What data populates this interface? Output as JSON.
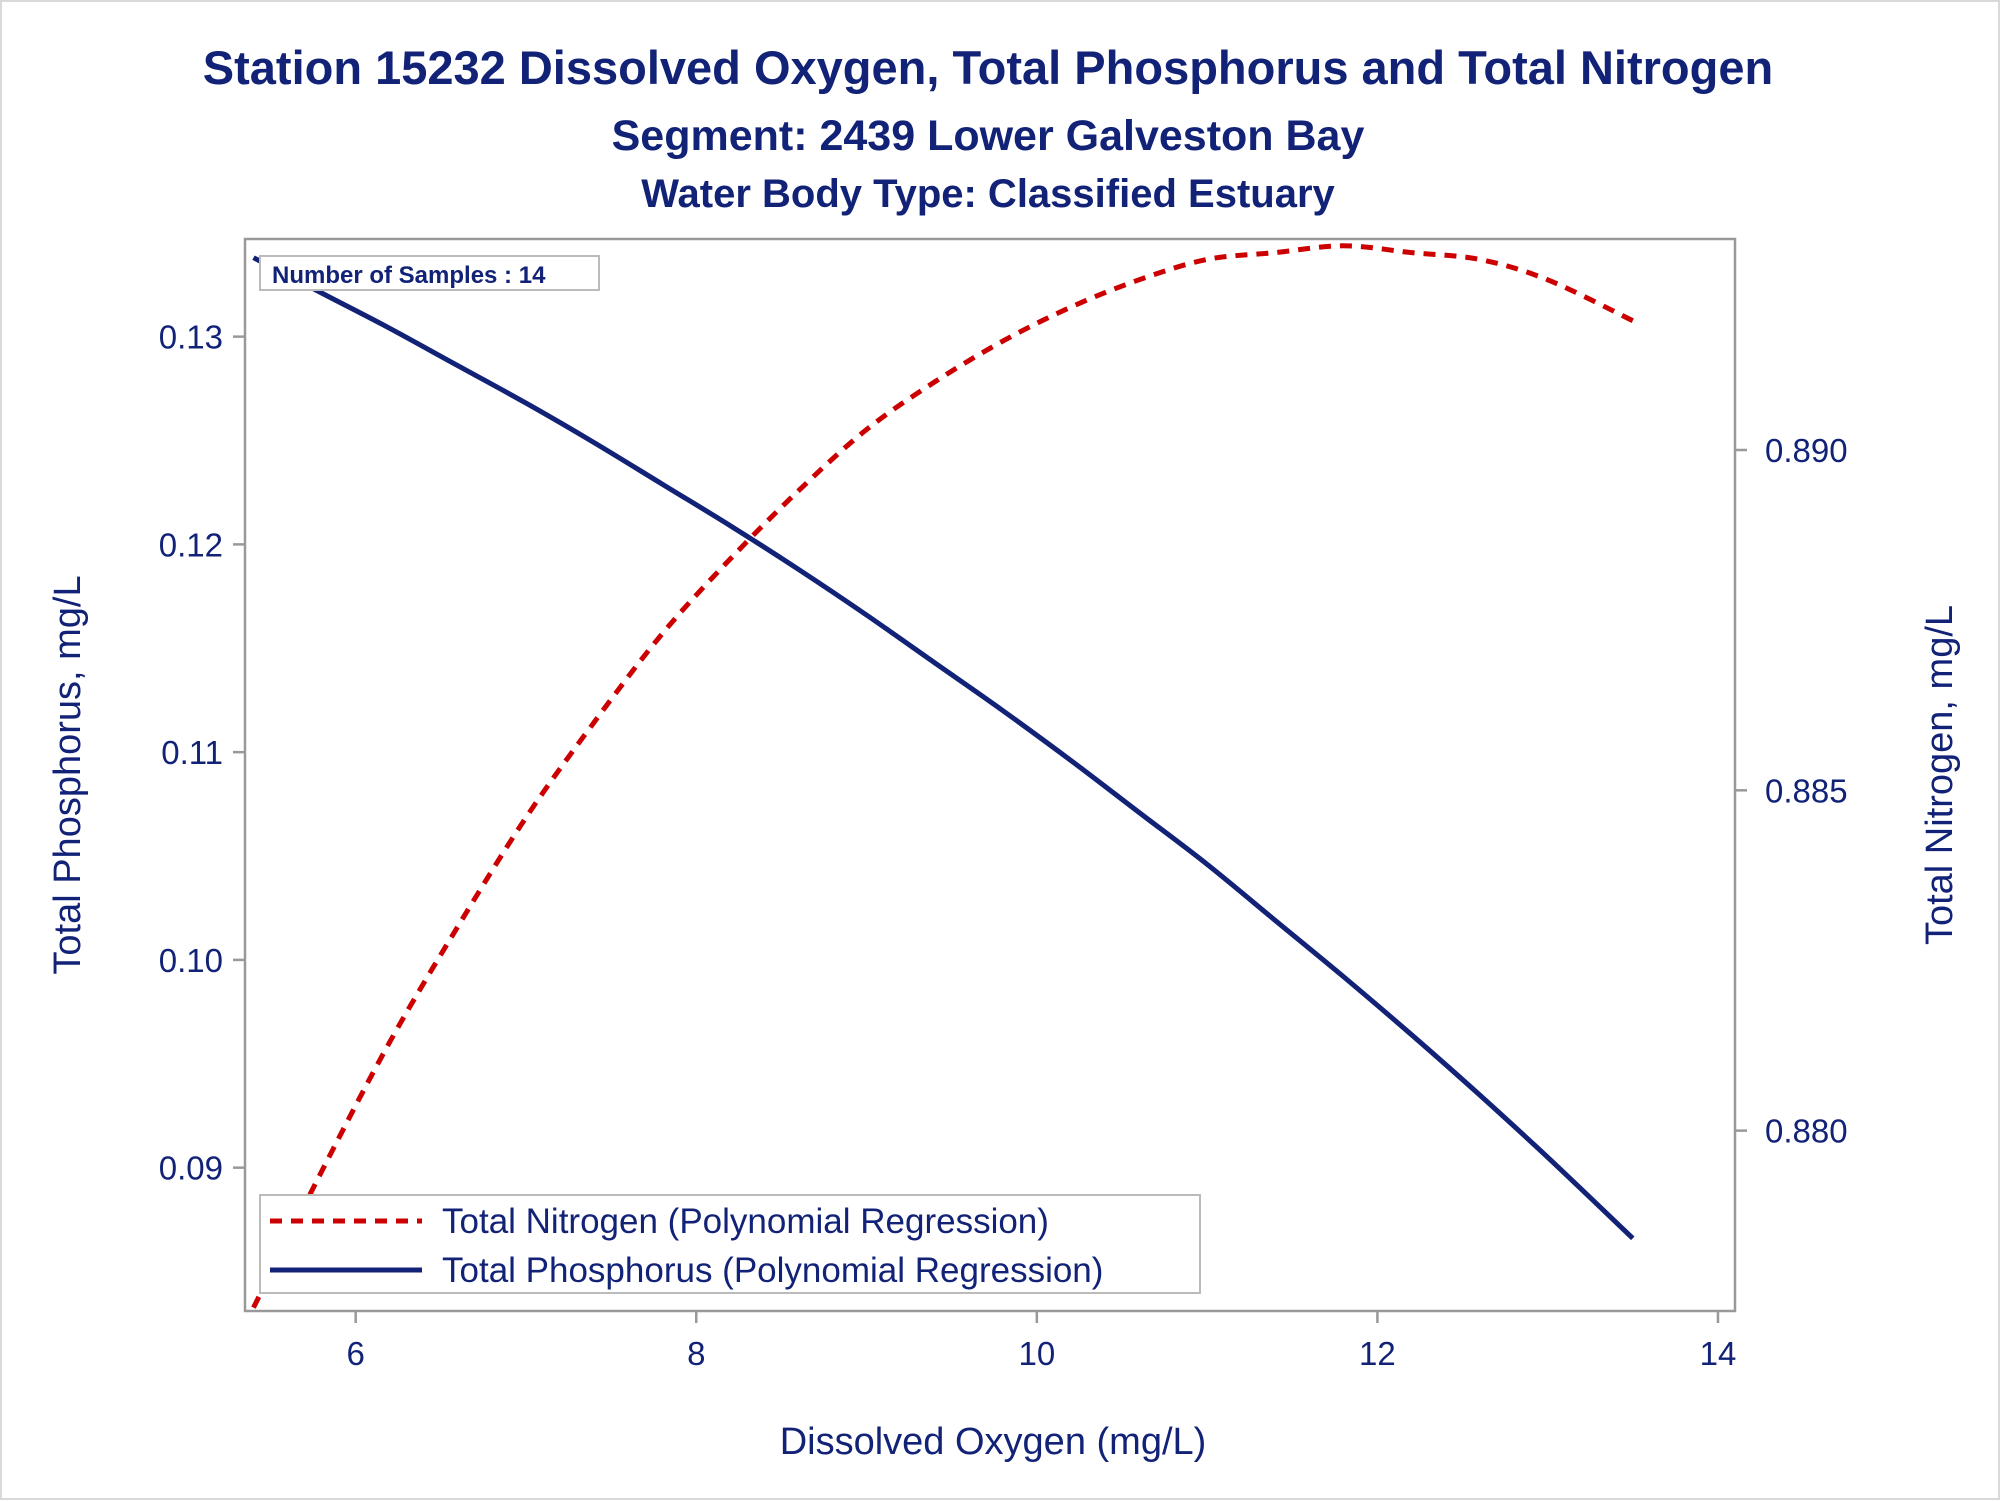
{
  "chart_data": {
    "type": "line",
    "title": "Station 15232  Dissolved Oxygen, Total Phosphorus and Total Nitrogen",
    "subtitle": "Segment: 2439  Lower Galveston Bay",
    "subtitle2": "Water Body Type: Classified Estuary",
    "xlabel": "Dissolved Oxygen (mg/L)",
    "ylabel": "Total Phosphorus, mg/L",
    "y2label": "Total Nitrogen, mg/L",
    "xlim": [
      5.35,
      14.1
    ],
    "ylim": [
      0.0831,
      0.1347
    ],
    "y2lim": [
      0.87735,
      0.8931
    ],
    "xticks": [
      6,
      8,
      10,
      12,
      14
    ],
    "xtick_labels": [
      "6",
      "8",
      "10",
      "12",
      "14"
    ],
    "yticks": [
      0.09,
      0.1,
      0.11,
      0.12,
      0.13
    ],
    "ytick_labels": [
      "0.09",
      "0.10",
      "0.11",
      "0.12",
      "0.13"
    ],
    "y2ticks": [
      0.88,
      0.885,
      0.89
    ],
    "y2tick_labels": [
      "0.880",
      "0.885",
      "0.890"
    ],
    "annotation": "Number of Samples : 14",
    "legend_placement": "bottom-left",
    "grid": false,
    "series": [
      {
        "name": "Total Nitrogen (Polynomial Regression)",
        "axis": "right",
        "color": "#cc0000",
        "style": "dashed",
        "x": [
          5.4,
          5.8,
          6.2,
          6.6,
          7.0,
          7.4,
          7.8,
          8.2,
          8.6,
          9.0,
          9.4,
          9.8,
          10.2,
          10.6,
          11.0,
          11.4,
          11.8,
          12.2,
          12.6,
          13.0,
          13.5
        ],
        "values": [
          0.8774,
          0.8794,
          0.8813,
          0.883,
          0.8846,
          0.886,
          0.8873,
          0.8884,
          0.8894,
          0.8903,
          0.891,
          0.8916,
          0.8921,
          0.8925,
          0.8928,
          0.8929,
          0.893,
          0.8929,
          0.8928,
          0.8925,
          0.8919
        ]
      },
      {
        "name": "Total Phosphorus (Polynomial Regression)",
        "axis": "left",
        "color": "#112277",
        "style": "solid",
        "x": [
          5.4,
          5.8,
          6.2,
          6.6,
          7.0,
          7.4,
          7.8,
          8.2,
          8.6,
          9.0,
          9.4,
          9.8,
          10.2,
          10.6,
          11.0,
          11.4,
          11.8,
          12.2,
          12.6,
          13.0,
          13.5
        ],
        "values": [
          0.1338,
          0.1321,
          0.1304,
          0.1286,
          0.1268,
          0.1249,
          0.1229,
          0.1209,
          0.1188,
          0.1166,
          0.1143,
          0.112,
          0.1096,
          0.1071,
          0.1046,
          0.1019,
          0.0992,
          0.0964,
          0.0935,
          0.0905,
          0.0866
        ]
      }
    ]
  }
}
